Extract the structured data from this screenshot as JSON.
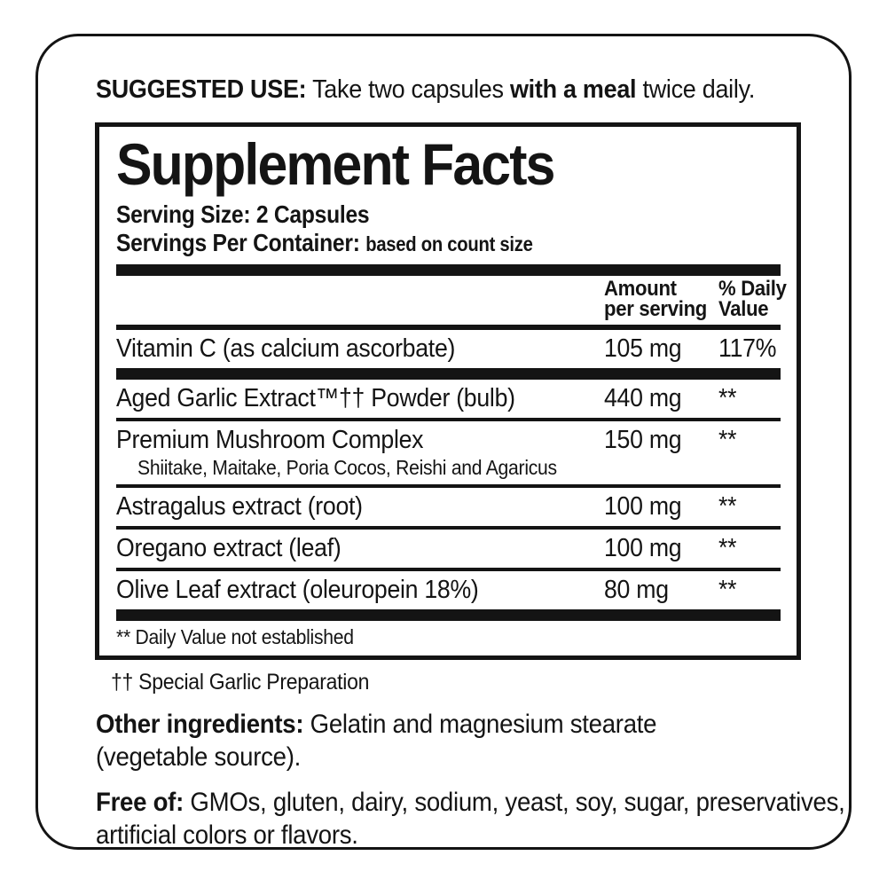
{
  "colors": {
    "ink": "#141414",
    "background": "#ffffff"
  },
  "suggested_use": {
    "label": "SUGGESTED USE:",
    "before_bold": " Take two capsules ",
    "bold": "with a meal",
    "after_bold": " twice daily."
  },
  "panel": {
    "title": "Supplement Facts",
    "serving_size": "Serving Size: 2 Capsules",
    "servings_label": "Servings Per Container: ",
    "servings_value": "based on count size",
    "columns": {
      "amount_line1": "Amount",
      "amount_line2": "per serving",
      "dv_line1": "% Daily",
      "dv_line2": "Value"
    },
    "rows": [
      {
        "name": "Vitamin C (as calcium ascorbate)",
        "amount": "105 mg",
        "dv": "117%"
      },
      {
        "name": "Aged Garlic Extract™†† Powder (bulb)",
        "amount": "440 mg",
        "dv": "**"
      },
      {
        "name": "Premium Mushroom Complex",
        "sub": "Shiitake, Maitake, Poria Cocos, Reishi and Agaricus",
        "amount": "150 mg",
        "dv": "**"
      },
      {
        "name": "Astragalus extract (root)",
        "amount": "100 mg",
        "dv": "**"
      },
      {
        "name": "Oregano extract (leaf)",
        "amount": "100 mg",
        "dv": "**"
      },
      {
        "name": "Olive Leaf extract (oleuropein 18%)",
        "amount": "80 mg",
        "dv": "**"
      }
    ],
    "footnote": "** Daily Value not established"
  },
  "notes": {
    "garlic_note": "†† Special Garlic Preparation"
  },
  "other_ingredients": {
    "label": "Other ingredients:",
    "text_line1": " Gelatin and magnesium stearate",
    "line2": "(vegetable source)."
  },
  "free_of": {
    "label": "Free of:",
    "text_line1": " GMOs, gluten, dairy, sodium, yeast, soy, sugar, preservatives,",
    "line2": "artificial colors or flavors."
  }
}
